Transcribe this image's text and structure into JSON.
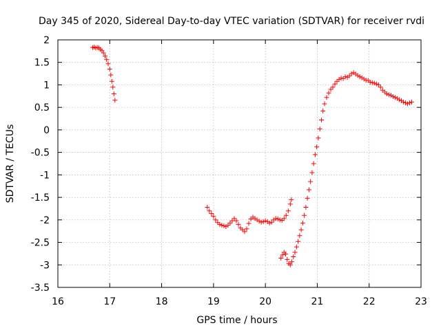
{
  "chart_data": {
    "type": "scatter",
    "title": "Day 345 of 2020, Sidereal Day-to-day VTEC variation (SDTVAR) for receiver rvdi",
    "xlabel": "GPS time / hours",
    "ylabel": "SDTVAR / TECUs",
    "xlim": [
      16,
      23
    ],
    "ylim": [
      -3.5,
      2
    ],
    "grid": true,
    "x_ticks": [
      "16",
      "17",
      "18",
      "19",
      "20",
      "21",
      "22",
      "23"
    ],
    "y_ticks": [
      "2",
      "1.5",
      "1",
      "0.5",
      "0",
      "-0.5",
      "-1",
      "-1.5",
      "-2",
      "-2.5",
      "-3",
      "-3.5"
    ],
    "marker": "+",
    "color": "#ff0000",
    "series": [
      {
        "name": "segment-1",
        "x": [
          16.67,
          16.7,
          16.73,
          16.76,
          16.79,
          16.82,
          16.85,
          16.88,
          16.91,
          16.94,
          16.97,
          17.0,
          17.02,
          17.04,
          17.06,
          17.08,
          17.1
        ],
        "values": [
          1.83,
          1.84,
          1.82,
          1.83,
          1.82,
          1.79,
          1.76,
          1.71,
          1.64,
          1.56,
          1.47,
          1.35,
          1.22,
          1.08,
          0.95,
          0.8,
          0.66
        ]
      },
      {
        "name": "segment-2",
        "x": [
          18.88,
          18.92,
          18.96,
          19.0,
          19.04,
          19.08,
          19.12,
          19.16,
          19.2,
          19.24,
          19.28,
          19.32,
          19.36,
          19.4,
          19.44,
          19.48,
          19.52,
          19.56,
          19.6,
          19.64,
          19.68,
          19.72,
          19.76,
          19.8,
          19.84,
          19.88,
          19.92,
          19.96,
          20.0,
          20.04,
          20.08,
          20.12,
          20.16,
          20.2,
          20.24,
          20.28,
          20.32,
          20.36,
          20.4,
          20.44,
          20.48,
          20.5
        ],
        "values": [
          -1.72,
          -1.8,
          -1.86,
          -1.92,
          -2.0,
          -2.06,
          -2.1,
          -2.12,
          -2.13,
          -2.15,
          -2.12,
          -2.07,
          -2.02,
          -1.97,
          -2.02,
          -2.1,
          -2.18,
          -2.22,
          -2.26,
          -2.2,
          -2.08,
          -1.98,
          -1.94,
          -1.97,
          -2.0,
          -2.03,
          -2.05,
          -2.04,
          -2.02,
          -2.04,
          -2.07,
          -2.05,
          -2.0,
          -1.97,
          -1.98,
          -2.0,
          -2.01,
          -1.97,
          -1.9,
          -1.8,
          -1.65,
          -1.55
        ]
      },
      {
        "name": "segment-3",
        "x": [
          20.3,
          20.33,
          20.36,
          20.39,
          20.42,
          20.45,
          20.48,
          20.51,
          20.54,
          20.57,
          20.6,
          20.63,
          20.66,
          20.69,
          20.72,
          20.75,
          20.78,
          20.81,
          20.84,
          20.87,
          20.9,
          20.93,
          20.96,
          20.99,
          21.02,
          21.05,
          21.08,
          21.11,
          21.14,
          21.18,
          21.22,
          21.26,
          21.3,
          21.34,
          21.38,
          21.42,
          21.46,
          21.5,
          21.54,
          21.58,
          21.62,
          21.66,
          21.7,
          21.74,
          21.78,
          21.82,
          21.86,
          21.9,
          21.94,
          21.98,
          22.02,
          22.06,
          22.1,
          22.14,
          22.18,
          22.22,
          22.26,
          22.3,
          22.34,
          22.38,
          22.42,
          22.46,
          22.5,
          22.54,
          22.58,
          22.62,
          22.66,
          22.7,
          22.74,
          22.78,
          22.82
        ],
        "values": [
          -2.85,
          -2.78,
          -2.72,
          -2.76,
          -2.88,
          -2.97,
          -3.0,
          -2.93,
          -2.82,
          -2.72,
          -2.6,
          -2.48,
          -2.35,
          -2.22,
          -2.07,
          -1.9,
          -1.72,
          -1.52,
          -1.33,
          -1.15,
          -0.95,
          -0.75,
          -0.55,
          -0.38,
          -0.18,
          0.02,
          0.22,
          0.42,
          0.58,
          0.72,
          0.82,
          0.9,
          0.95,
          1.02,
          1.08,
          1.12,
          1.15,
          1.14,
          1.18,
          1.17,
          1.2,
          1.25,
          1.27,
          1.24,
          1.21,
          1.18,
          1.16,
          1.13,
          1.1,
          1.1,
          1.06,
          1.05,
          1.04,
          1.02,
          1.0,
          0.95,
          0.88,
          0.84,
          0.8,
          0.78,
          0.77,
          0.74,
          0.72,
          0.7,
          0.67,
          0.65,
          0.62,
          0.6,
          0.58,
          0.6,
          0.62
        ]
      }
    ]
  }
}
